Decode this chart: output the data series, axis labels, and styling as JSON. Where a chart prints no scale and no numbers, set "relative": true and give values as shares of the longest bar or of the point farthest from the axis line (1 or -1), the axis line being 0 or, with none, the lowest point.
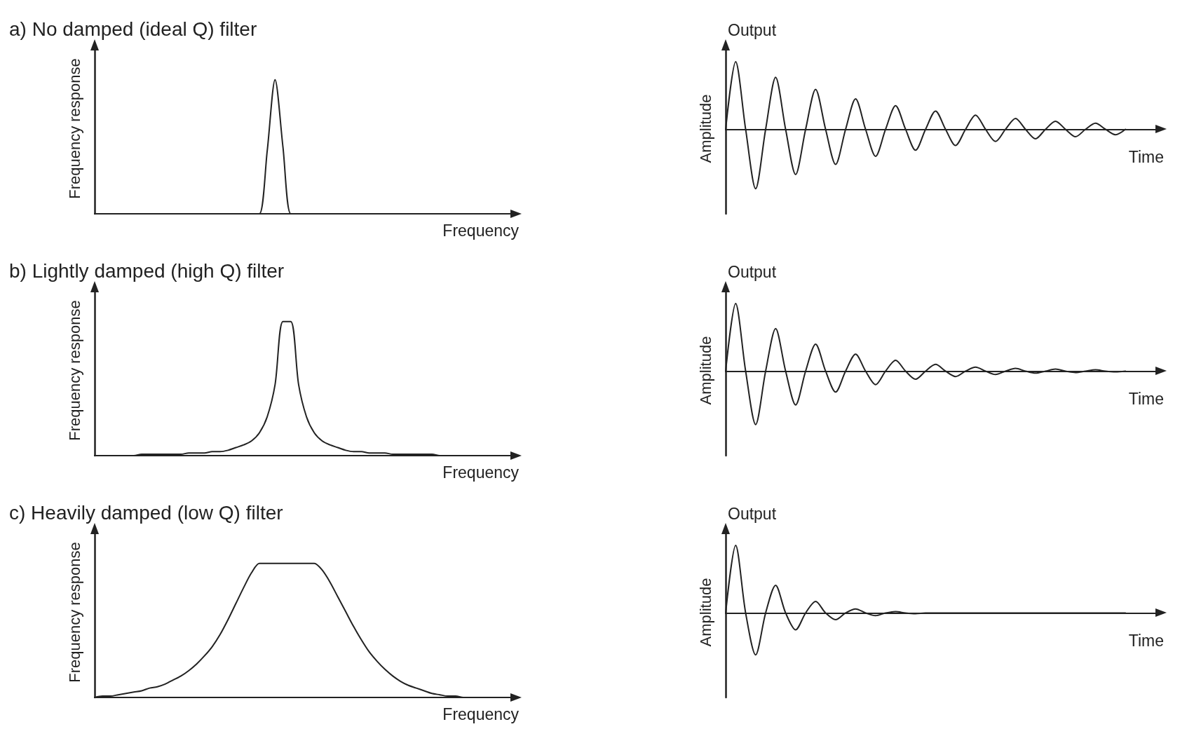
{
  "chart_data": [
    {
      "type": "line",
      "title": "a) No damped (ideal Q) filter",
      "xlabel": "Frequency",
      "ylabel": "Frequency response",
      "relative": true,
      "tick_labels": false,
      "grid": false,
      "marker": "none",
      "line_style": "solid",
      "categories": [
        null,
        null,
        null,
        null,
        null,
        null,
        null,
        null,
        null,
        null,
        null,
        null,
        null,
        null,
        null,
        null,
        null,
        null,
        null,
        null,
        null,
        null,
        null,
        null,
        null,
        null,
        null,
        null,
        null,
        null,
        null,
        null,
        null,
        null,
        null,
        null,
        null,
        null,
        null,
        null,
        null,
        null,
        null,
        null,
        null,
        null,
        null,
        null,
        null,
        null,
        null,
        null,
        null,
        null
      ],
      "series": [
        {
          "color": "#222222",
          "values": [
            0,
            0,
            0,
            0,
            0,
            0,
            0,
            0,
            0,
            0,
            0,
            0,
            0,
            0,
            0,
            0,
            0,
            0,
            0,
            0,
            0,
            0,
            0.47,
            1,
            0.5,
            0,
            0,
            0,
            0,
            0,
            0,
            0,
            0,
            0,
            0,
            0,
            0,
            0,
            0,
            0,
            0,
            0,
            0,
            0,
            0,
            0,
            0,
            0,
            0,
            0,
            0,
            null,
            null,
            null
          ]
        }
      ]
    },
    {
      "type": "line",
      "title": "Output",
      "xlabel": "Time",
      "ylabel": "Amplitude",
      "relative": true,
      "tick_labels": false,
      "grid": false,
      "marker": "none",
      "line_style": "solid",
      "categories": [
        null,
        null,
        null,
        null,
        null,
        null,
        null,
        null,
        null,
        null,
        null,
        null,
        null,
        null,
        null,
        null,
        null,
        null,
        null,
        null,
        null,
        null,
        null,
        null,
        null,
        null,
        null,
        null,
        null,
        null,
        null,
        null,
        null,
        null,
        null,
        null,
        null,
        null,
        null,
        null,
        null,
        null,
        null,
        null
      ],
      "series": [
        {
          "color": "#222222",
          "values": [
            0,
            1,
            0,
            -0.88,
            0,
            0.77,
            0,
            -0.67,
            0,
            0.59,
            0,
            -0.52,
            0,
            0.45,
            0,
            -0.4,
            0,
            0.35,
            0,
            -0.31,
            0,
            0.27,
            0,
            -0.24,
            0,
            0.21,
            0,
            -0.18,
            0,
            0.16,
            0,
            -0.14,
            0,
            0.12,
            0,
            -0.11,
            0,
            0.09,
            0,
            -0.08,
            0,
            null,
            null,
            null
          ]
        }
      ]
    },
    {
      "type": "line",
      "title": "b) Lightly damped (high Q) filter",
      "xlabel": "Frequency",
      "ylabel": "Frequency response",
      "relative": true,
      "tick_labels": false,
      "grid": false,
      "marker": "none",
      "line_style": "solid",
      "categories": [
        null,
        null,
        null,
        null,
        null,
        null,
        null,
        null,
        null,
        null,
        null,
        null,
        null,
        null,
        null,
        null,
        null,
        null,
        null,
        null,
        null,
        null,
        null,
        null,
        null,
        null,
        null,
        null,
        null,
        null,
        null,
        null,
        null,
        null,
        null,
        null,
        null,
        null,
        null,
        null,
        null,
        null,
        null,
        null,
        null,
        null,
        null,
        null,
        null,
        null,
        null,
        null,
        null,
        null
      ],
      "series": [
        {
          "color": "#222222",
          "values": [
            0,
            0,
            0,
            0,
            0,
            0,
            0.01,
            0.01,
            0.01,
            0.01,
            0.01,
            0.01,
            0.02,
            0.02,
            0.02,
            0.03,
            0.03,
            0.04,
            0.06,
            0.08,
            0.11,
            0.17,
            0.29,
            0.53,
            1,
            1,
            0.53,
            0.29,
            0.17,
            0.11,
            0.08,
            0.06,
            0.04,
            0.03,
            0.03,
            0.02,
            0.02,
            0.02,
            0.01,
            0.01,
            0.01,
            0.01,
            0.01,
            0.01,
            0,
            0,
            0,
            0,
            0,
            0,
            0,
            null,
            null,
            null
          ]
        }
      ]
    },
    {
      "type": "line",
      "title": "Output",
      "xlabel": "Time",
      "ylabel": "Amplitude",
      "relative": true,
      "tick_labels": false,
      "grid": false,
      "marker": "none",
      "line_style": "solid",
      "categories": [
        null,
        null,
        null,
        null,
        null,
        null,
        null,
        null,
        null,
        null,
        null,
        null,
        null,
        null,
        null,
        null,
        null,
        null,
        null,
        null,
        null,
        null,
        null,
        null,
        null,
        null,
        null,
        null,
        null,
        null,
        null,
        null,
        null,
        null,
        null,
        null,
        null,
        null,
        null,
        null,
        null,
        null,
        null,
        null
      ],
      "series": [
        {
          "color": "#222222",
          "values": [
            0,
            1,
            0,
            -0.79,
            0,
            0.63,
            0,
            -0.5,
            0,
            0.4,
            0,
            -0.31,
            0,
            0.25,
            0,
            -0.2,
            0,
            0.16,
            0,
            -0.12,
            0,
            0.1,
            0,
            -0.08,
            0,
            0.06,
            0,
            -0.05,
            0,
            0.04,
            0,
            -0.03,
            0,
            0.03,
            0,
            -0.02,
            0,
            0.02,
            0,
            -0.01,
            0,
            null,
            null,
            null
          ]
        }
      ]
    },
    {
      "type": "line",
      "title": "c) Heavily damped (low Q) filter",
      "xlabel": "Frequency",
      "ylabel": "Frequency response",
      "relative": true,
      "tick_labels": false,
      "grid": false,
      "marker": "none",
      "line_style": "solid",
      "categories": [
        null,
        null,
        null,
        null,
        null,
        null,
        null,
        null,
        null,
        null,
        null,
        null,
        null,
        null,
        null,
        null,
        null,
        null,
        null,
        null,
        null,
        null,
        null,
        null,
        null,
        null,
        null,
        null,
        null,
        null,
        null,
        null,
        null,
        null,
        null,
        null,
        null,
        null,
        null,
        null,
        null,
        null,
        null,
        null,
        null,
        null,
        null,
        null,
        null,
        null,
        null,
        null,
        null,
        null
      ],
      "series": [
        {
          "color": "#222222",
          "values": [
            0,
            0.01,
            0.01,
            0.02,
            0.03,
            0.04,
            0.05,
            0.07,
            0.08,
            0.1,
            0.13,
            0.16,
            0.2,
            0.25,
            0.31,
            0.38,
            0.47,
            0.58,
            0.7,
            0.82,
            0.93,
            1,
            1,
            1,
            1,
            1,
            1,
            1,
            1,
            0.95,
            0.86,
            0.75,
            0.64,
            0.53,
            0.43,
            0.34,
            0.27,
            0.21,
            0.16,
            0.12,
            0.09,
            0.07,
            0.05,
            0.03,
            0.02,
            0.01,
            0.01,
            0,
            0,
            0,
            0,
            null,
            null,
            null
          ]
        }
      ]
    },
    {
      "type": "line",
      "title": "Output",
      "xlabel": "Time",
      "ylabel": "Amplitude",
      "relative": true,
      "tick_labels": false,
      "grid": false,
      "marker": "none",
      "line_style": "solid",
      "categories": [
        null,
        null,
        null,
        null,
        null,
        null,
        null,
        null,
        null,
        null,
        null,
        null,
        null,
        null,
        null,
        null,
        null,
        null,
        null,
        null,
        null,
        null,
        null,
        null,
        null,
        null,
        null,
        null,
        null,
        null,
        null,
        null,
        null,
        null,
        null,
        null,
        null,
        null,
        null,
        null,
        null,
        null,
        null,
        null
      ],
      "series": [
        {
          "color": "#222222",
          "values": [
            0,
            1,
            0,
            -0.62,
            0,
            0.41,
            0,
            -0.25,
            0,
            0.17,
            0,
            -0.1,
            0,
            0.06,
            0,
            -0.04,
            0,
            0.02,
            0,
            -0.01,
            0,
            0,
            0,
            0,
            0,
            0,
            0,
            0,
            0,
            0,
            0,
            0,
            0,
            0,
            0,
            0,
            0,
            0,
            0,
            0,
            0,
            null,
            null,
            null
          ]
        }
      ]
    }
  ]
}
